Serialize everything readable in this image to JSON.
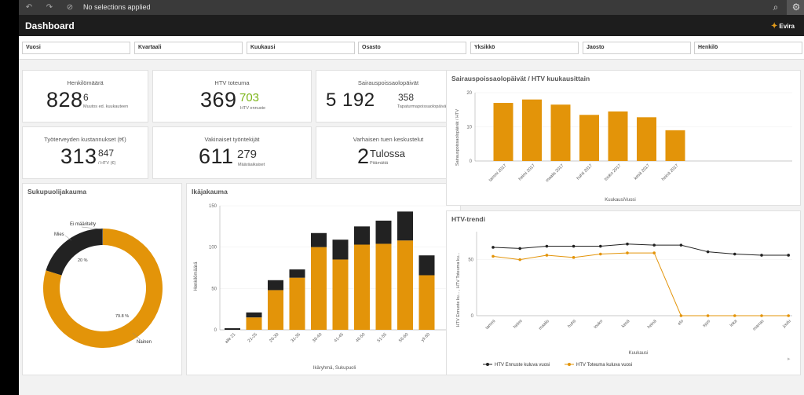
{
  "toolbar": {
    "selection_text": "No selections applied"
  },
  "header": {
    "title": "Dashboard",
    "logo_text": "Evira"
  },
  "filters": [
    "Vuosi",
    "Kvartaali",
    "Kuukausi",
    "Osasto",
    "Yksikkö",
    "Jaosto",
    "Henkilö"
  ],
  "kpis": {
    "henkilomaara": {
      "label": "Henkilömäärä",
      "value": "828",
      "small": "6",
      "sub": "Muutos ed. kuukauteen"
    },
    "htv": {
      "label": "HTV toteuma",
      "value": "369",
      "small": "703",
      "sub": "HTV ennuste",
      "small_color": "#7cb518"
    },
    "sairaus": {
      "label": "Sairauspoissaolopäivät",
      "value": "5 192",
      "small": "358",
      "sub": "Tapaturmapoissaolopäivät"
    },
    "tyoterveys": {
      "label": "Työterveyden kustannukset (t€)",
      "value": "313",
      "small": "847",
      "sub": "/ HTV (€)"
    },
    "vakinaiset": {
      "label": "Vakinaiset työntekijät",
      "value": "611",
      "small": "279",
      "sub": "Määräaikaiset"
    },
    "varhainen": {
      "label": "Varhaisen tuen keskustelut",
      "value": "2",
      "small": "Tulossa",
      "sub": "Pitämättä"
    }
  },
  "sukupuoli": {
    "title": "Sukupuolijakauma",
    "labels": {
      "ei": "Ei määritelty",
      "mies": "Mies",
      "nainen": "Nainen",
      "mies_pct": "20 %",
      "nainen_pct": "79.8 %"
    }
  },
  "ika": {
    "title": "Ikäjakauma",
    "ylabel": "Henkilömäärä",
    "xlabel": "Ikäryhmä, Sukupuoli"
  },
  "sairaus_chart": {
    "title": "Sairauspoissaolopäivät / HTV kuukausittain",
    "ylabel": "Sairauspoissaolopäivät / HTV",
    "xlabel": "KuukausiVuosi"
  },
  "trendi": {
    "title": "HTV-trendi",
    "ylabel": "HTV Ennuste ku... , HTV Toteuma ku...",
    "xlabel": "Kuukausi",
    "legend": [
      "HTV Ennuste kuluva vuosi",
      "HTV Toteuma kuluva vuosi"
    ]
  },
  "chart_data": [
    {
      "type": "bar",
      "title": "Sairauspoissaolopäivät / HTV kuukausittain",
      "categories": [
        "tammi 2017",
        "helmi 2017",
        "maalis 2017",
        "huhti 2017",
        "touko 2017",
        "kesä 2017",
        "heinä 2017"
      ],
      "values": [
        17,
        18,
        16.5,
        13.5,
        14.5,
        12.8,
        9
      ],
      "ylim": [
        0,
        20
      ],
      "yticks": [
        0,
        10,
        20
      ],
      "color": "#e39409"
    },
    {
      "type": "bar",
      "title": "Ikäjakauma",
      "categories": [
        "alle 21",
        "21-25",
        "26-30",
        "31-35",
        "36-40",
        "41-45",
        "46-50",
        "51-55",
        "56-60",
        "yli 60"
      ],
      "series": [
        {
          "name": "Nainen",
          "values": [
            0,
            15,
            48,
            63,
            100,
            85,
            103,
            104,
            108,
            66
          ],
          "color": "#e39409"
        },
        {
          "name": "Mies",
          "values": [
            2,
            6,
            12,
            10,
            17,
            24,
            22,
            28,
            35,
            24
          ],
          "color": "#222222"
        }
      ],
      "ylim": [
        0,
        150
      ],
      "yticks": [
        0,
        50,
        100,
        150
      ]
    },
    {
      "type": "pie",
      "title": "Sukupuolijakauma",
      "slices": [
        {
          "label": "Nainen",
          "value": 79.8,
          "color": "#e39409"
        },
        {
          "label": "Mies",
          "value": 20,
          "color": "#222222"
        },
        {
          "label": "Ei määritelty",
          "value": 0.2,
          "color": "#555555"
        }
      ]
    },
    {
      "type": "line",
      "title": "HTV-trendi",
      "categories": [
        "tammi",
        "helmi",
        "maalis",
        "huhti",
        "touko",
        "kesä",
        "heinä",
        "elo",
        "syys",
        "loka",
        "marras",
        "joulu"
      ],
      "series": [
        {
          "name": "HTV Ennuste kuluva vuosi",
          "values": [
            61,
            60,
            62,
            62,
            62,
            64,
            63,
            63,
            57,
            55,
            54,
            54
          ],
          "color": "#222222"
        },
        {
          "name": "HTV Toteuma kuluva vuosi",
          "values": [
            53,
            50,
            54,
            52,
            55,
            56,
            56,
            0,
            0,
            0,
            0,
            0
          ],
          "color": "#e39409"
        }
      ],
      "ylim": [
        0,
        75
      ],
      "yticks": [
        0,
        50
      ]
    }
  ]
}
